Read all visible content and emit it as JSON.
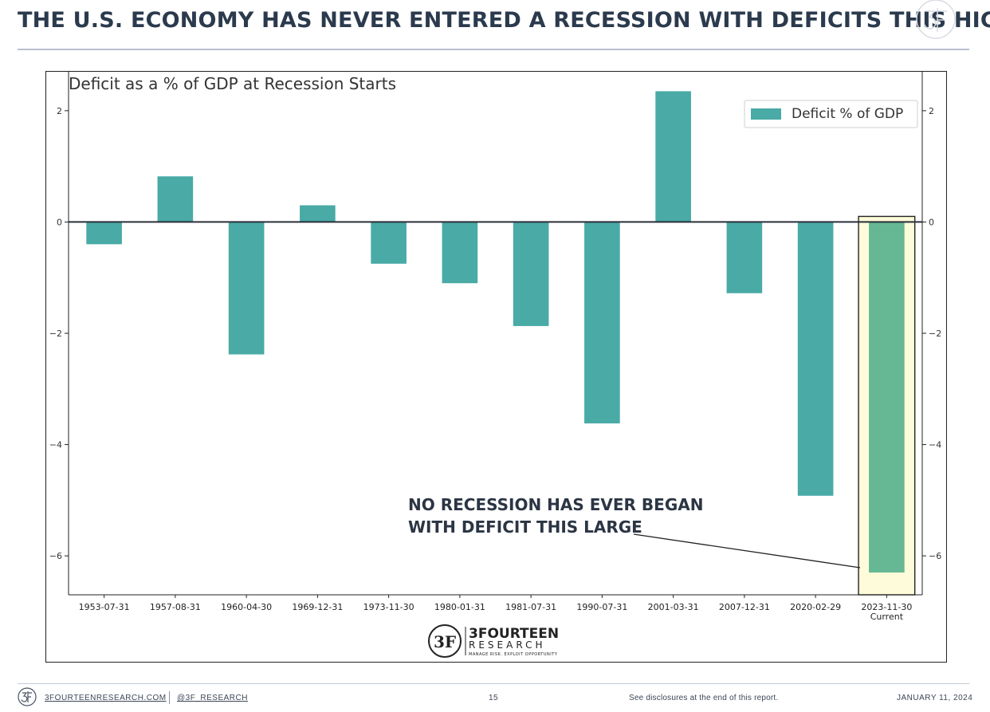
{
  "headline": "THE U.S. ECONOMY HAS NEVER ENTERED A RECESSION WITH DEFICITS THIS HIGH",
  "brand": {
    "name": "3FOURTEEN",
    "sub": "RESEARCH",
    "tagline": "MANAGE RISK. EXPLOIT OPPORTUNITY",
    "monogram": "3F"
  },
  "footer": {
    "website": "3FOURTEENRESEARCH.COM",
    "handle": "@3F_RESEARCH",
    "page_number": "15",
    "disclosure": "See disclosures at the end of this report.",
    "date": "JANUARY 11, 2024"
  },
  "colors": {
    "bar": "#49aaa6",
    "highlight_bar": "#66b894",
    "highlight_fill": "#fdfbd9",
    "highlight_border": "#222222",
    "zero_line": "#2a2f3a",
    "title": "#2b3a4d"
  },
  "chart_data": {
    "type": "bar",
    "title": "Deficit as a % of GDP at Recession Starts",
    "categories": [
      "1953-07-31",
      "1957-08-31",
      "1960-04-30",
      "1969-12-31",
      "1973-11-30",
      "1980-01-31",
      "1981-07-31",
      "1990-07-31",
      "2001-03-31",
      "2007-12-31",
      "2020-02-29",
      "2023-11-30"
    ],
    "category_sublabels": [
      "",
      "",
      "",
      "",
      "",
      "",
      "",
      "",
      "",
      "",
      "",
      "Current"
    ],
    "series": [
      {
        "name": "Deficit % of GDP",
        "values": [
          -0.4,
          0.82,
          -2.38,
          0.3,
          -0.75,
          -1.1,
          -1.87,
          -3.62,
          2.35,
          -1.28,
          -4.92,
          -6.3
        ]
      }
    ],
    "ylim": [
      -6.7,
      2.7
    ],
    "yticks": [
      2,
      0,
      -2,
      -4,
      -6
    ],
    "ytick_labels": [
      "2",
      "0",
      "−2",
      "−4",
      "−6"
    ],
    "secondary_y_axis": true,
    "legend_position": "top-right",
    "highlight_index": 11,
    "annotation": {
      "lines": [
        "NO RECESSION HAS EVER BEGAN",
        "WITH DEFICIT THIS LARGE"
      ],
      "target_index": 11
    }
  }
}
